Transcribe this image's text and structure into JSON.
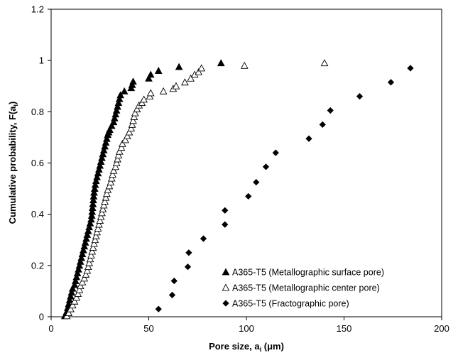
{
  "chart_data": {
    "type": "scatter",
    "title": "",
    "xlabel": "Pore size, a",
    "xlabel_sub": "i",
    "xlabel_unit": " (μm)",
    "ylabel": "Cumulative probability, F(a",
    "ylabel_sub": "i",
    "ylabel_tail": ")",
    "xlim": [
      0,
      200
    ],
    "ylim": [
      0,
      1.2
    ],
    "xticks": [
      0,
      50,
      100,
      150,
      200
    ],
    "xtick_labels": [
      "0",
      "50",
      "100",
      "150",
      "200"
    ],
    "yticks": [
      0,
      0.2,
      0.4,
      0.6,
      0.8,
      1,
      1.2
    ],
    "ytick_labels": [
      "0",
      "0.2",
      "0.4",
      "0.6",
      "0.8",
      "1",
      "1.2"
    ],
    "grid": false,
    "legend_position": "bottom-right",
    "series": [
      {
        "name": "A365-T5 (Metallographic surface pore)",
        "marker": "filled-triangle",
        "points": [
          [
            7,
            0.003
          ],
          [
            7.5,
            0.01
          ],
          [
            8,
            0.02
          ],
          [
            8.5,
            0.035
          ],
          [
            9,
            0.05
          ],
          [
            9.5,
            0.065
          ],
          [
            10,
            0.08
          ],
          [
            10.5,
            0.095
          ],
          [
            11,
            0.11
          ],
          [
            12,
            0.125
          ],
          [
            12.5,
            0.14
          ],
          [
            13,
            0.155
          ],
          [
            13.5,
            0.17
          ],
          [
            14,
            0.185
          ],
          [
            14.5,
            0.2
          ],
          [
            15,
            0.215
          ],
          [
            15.5,
            0.23
          ],
          [
            16,
            0.245
          ],
          [
            16.5,
            0.26
          ],
          [
            17,
            0.275
          ],
          [
            17.5,
            0.29
          ],
          [
            18,
            0.305
          ],
          [
            18.5,
            0.32
          ],
          [
            19,
            0.335
          ],
          [
            19.5,
            0.35
          ],
          [
            20,
            0.365
          ],
          [
            20.5,
            0.38
          ],
          [
            20.8,
            0.395
          ],
          [
            21,
            0.41
          ],
          [
            21.2,
            0.425
          ],
          [
            21.4,
            0.44
          ],
          [
            21.6,
            0.455
          ],
          [
            21.8,
            0.47
          ],
          [
            22,
            0.485
          ],
          [
            22.3,
            0.5
          ],
          [
            22.6,
            0.515
          ],
          [
            23,
            0.53
          ],
          [
            23.5,
            0.545
          ],
          [
            24,
            0.56
          ],
          [
            24.5,
            0.575
          ],
          [
            25,
            0.59
          ],
          [
            25.5,
            0.605
          ],
          [
            26,
            0.62
          ],
          [
            26.5,
            0.635
          ],
          [
            27,
            0.65
          ],
          [
            27.5,
            0.665
          ],
          [
            28,
            0.68
          ],
          [
            28.5,
            0.695
          ],
          [
            29,
            0.71
          ],
          [
            29.5,
            0.72
          ],
          [
            30,
            0.73
          ],
          [
            31,
            0.745
          ],
          [
            32,
            0.76
          ],
          [
            32.5,
            0.775
          ],
          [
            33,
            0.79
          ],
          [
            33.5,
            0.805
          ],
          [
            34,
            0.82
          ],
          [
            34.5,
            0.835
          ],
          [
            35,
            0.85
          ],
          [
            35.5,
            0.865
          ],
          [
            37.5,
            0.88
          ],
          [
            41,
            0.893
          ],
          [
            41.5,
            0.905
          ],
          [
            42,
            0.918
          ],
          [
            50,
            0.93
          ],
          [
            51,
            0.945
          ],
          [
            55,
            0.96
          ],
          [
            65.5,
            0.975
          ],
          [
            87,
            0.99
          ]
        ]
      },
      {
        "name": "A365-T5 (Metallographic center pore)",
        "marker": "open-triangle",
        "points": [
          [
            8,
            0.003
          ],
          [
            9,
            0.015
          ],
          [
            10,
            0.03
          ],
          [
            11,
            0.045
          ],
          [
            12,
            0.06
          ],
          [
            13,
            0.075
          ],
          [
            13.8,
            0.09
          ],
          [
            14.5,
            0.105
          ],
          [
            15,
            0.12
          ],
          [
            16,
            0.135
          ],
          [
            17,
            0.15
          ],
          [
            17.8,
            0.165
          ],
          [
            18.5,
            0.18
          ],
          [
            19,
            0.195
          ],
          [
            19.5,
            0.21
          ],
          [
            20,
            0.225
          ],
          [
            20.5,
            0.24
          ],
          [
            21,
            0.255
          ],
          [
            21.5,
            0.27
          ],
          [
            22,
            0.285
          ],
          [
            22.5,
            0.3
          ],
          [
            23,
            0.315
          ],
          [
            23.5,
            0.33
          ],
          [
            24,
            0.345
          ],
          [
            24.5,
            0.36
          ],
          [
            25,
            0.375
          ],
          [
            25.5,
            0.39
          ],
          [
            26,
            0.405
          ],
          [
            26.5,
            0.42
          ],
          [
            27,
            0.435
          ],
          [
            27.5,
            0.45
          ],
          [
            28,
            0.465
          ],
          [
            28.5,
            0.48
          ],
          [
            29,
            0.495
          ],
          [
            29.8,
            0.51
          ],
          [
            30.5,
            0.525
          ],
          [
            31,
            0.54
          ],
          [
            31.5,
            0.555
          ],
          [
            32,
            0.57
          ],
          [
            33,
            0.585
          ],
          [
            33.5,
            0.6
          ],
          [
            34,
            0.615
          ],
          [
            34.5,
            0.63
          ],
          [
            35,
            0.645
          ],
          [
            36,
            0.66
          ],
          [
            36.5,
            0.675
          ],
          [
            38,
            0.69
          ],
          [
            39,
            0.705
          ],
          [
            40,
            0.72
          ],
          [
            41,
            0.735
          ],
          [
            41.5,
            0.75
          ],
          [
            42,
            0.765
          ],
          [
            42.5,
            0.78
          ],
          [
            43,
            0.795
          ],
          [
            44,
            0.81
          ],
          [
            45,
            0.825
          ],
          [
            46.5,
            0.835
          ],
          [
            47.5,
            0.848
          ],
          [
            50.5,
            0.86
          ],
          [
            51,
            0.873
          ],
          [
            57.5,
            0.88
          ],
          [
            62.5,
            0.89
          ],
          [
            64,
            0.9
          ],
          [
            68.5,
            0.915
          ],
          [
            71.5,
            0.93
          ],
          [
            73.5,
            0.945
          ],
          [
            75.5,
            0.955
          ],
          [
            77,
            0.97
          ],
          [
            99,
            0.98
          ],
          [
            140,
            0.99
          ]
        ]
      },
      {
        "name": "A365-T5 (Fractographic pore)",
        "marker": "filled-diamond",
        "points": [
          [
            55,
            0.03
          ],
          [
            62,
            0.085
          ],
          [
            63,
            0.14
          ],
          [
            70,
            0.195
          ],
          [
            70.5,
            0.25
          ],
          [
            78,
            0.305
          ],
          [
            89,
            0.36
          ],
          [
            89,
            0.415
          ],
          [
            101,
            0.47
          ],
          [
            105,
            0.525
          ],
          [
            110,
            0.585
          ],
          [
            115,
            0.64
          ],
          [
            132,
            0.695
          ],
          [
            139,
            0.75
          ],
          [
            143,
            0.805
          ],
          [
            158,
            0.86
          ],
          [
            174,
            0.915
          ],
          [
            184,
            0.97
          ]
        ]
      }
    ]
  }
}
